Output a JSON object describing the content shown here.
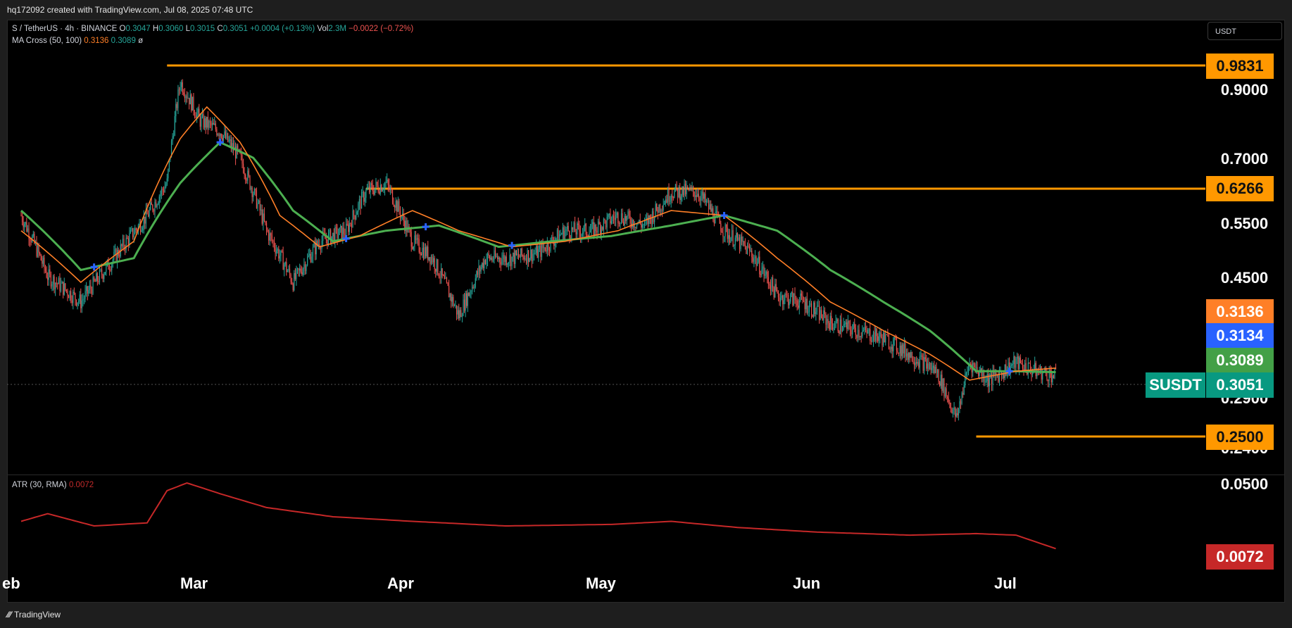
{
  "header": {
    "attribution": "hq172092 created with TradingView.com, Jul 08, 2025 07:48 UTC"
  },
  "legend": {
    "symbol": "S / TetherUS · 4h · BINANCE",
    "o_label": "O",
    "o": "0.3047",
    "h_label": "H",
    "h": "0.3060",
    "l_label": "L",
    "l": "0.3015",
    "c_label": "C",
    "c": "0.3051",
    "change": "+0.0004 (+0.13%)",
    "vol_label": "Vol",
    "vol": "2.3M",
    "vol_change": "−0.0022 (−0.72%)",
    "ma_name": "MA Cross (50, 100)",
    "ma_fast": "0.3136",
    "ma_slow": "0.3089",
    "ma_extra": "ø",
    "atr_name": "ATR (30, RMA)",
    "atr_value": "0.0072"
  },
  "currency_button": "USDT",
  "price_axis": [
    "0.9000",
    "0.7000",
    "0.5500",
    "0.4500",
    "0.2900",
    "0.2400",
    "0.0500"
  ],
  "price_tags": {
    "level_high": "0.9831",
    "level_mid": "0.6266",
    "ma_fast": "0.3136",
    "blue": "0.3134",
    "ma_slow": "0.3089",
    "last": "0.3051",
    "level_low": "0.2500",
    "atr": "0.0072"
  },
  "symbol_tag": "SUSDT",
  "months": [
    "eb",
    "Mar",
    "Apr",
    "May",
    "Jun",
    "Jul"
  ],
  "footer": {
    "brand": "TradingView"
  },
  "colors": {
    "up": "#26a69a",
    "down": "#ef5350",
    "ma_fast": "#ff7f27",
    "ma_slow": "#4caf50",
    "level": "#ff9800",
    "atr": "#c62828",
    "cross": "#2962ff"
  },
  "chart_data": {
    "type": "line",
    "title": "S / TetherUS · 4h · BINANCE",
    "x_ticks": [
      "eb",
      "Mar",
      "Apr",
      "May",
      "Jun",
      "Jul"
    ],
    "y_scale": "log",
    "ylim": [
      0.22,
      1.05
    ],
    "horizontal_levels": [
      0.9831,
      0.6266,
      0.25
    ],
    "series": [
      {
        "name": "S / TetherUS",
        "x": [
          "Feb 01",
          "Feb 05",
          "Feb 10",
          "Feb 15",
          "Feb 20",
          "Feb 23",
          "Feb 25",
          "Feb 28",
          "Mar 03",
          "Mar 06",
          "Mar 10",
          "Mar 14",
          "Mar 18",
          "Mar 22",
          "Mar 25",
          "Mar 28",
          "Apr 01",
          "Apr 04",
          "Apr 08",
          "Apr 12",
          "Apr 16",
          "Apr 20",
          "Apr 24",
          "Apr 28",
          "May 02",
          "May 06",
          "May 10",
          "May 14",
          "May 18",
          "May 22",
          "May 26",
          "May 30",
          "Jun 03",
          "Jun 07",
          "Jun 11",
          "Jun 15",
          "Jun 19",
          "Jun 22",
          "Jun 24",
          "Jun 27",
          "Jul 01",
          "Jul 04",
          "Jul 07"
        ],
        "values": [
          0.55,
          0.44,
          0.4,
          0.47,
          0.55,
          0.62,
          0.9,
          0.78,
          0.75,
          0.68,
          0.52,
          0.43,
          0.5,
          0.52,
          0.6,
          0.62,
          0.5,
          0.47,
          0.38,
          0.47,
          0.47,
          0.48,
          0.52,
          0.52,
          0.55,
          0.53,
          0.6,
          0.6,
          0.52,
          0.48,
          0.41,
          0.4,
          0.37,
          0.36,
          0.35,
          0.33,
          0.31,
          0.26,
          0.32,
          0.3,
          0.32,
          0.31,
          0.305
        ]
      },
      {
        "name": "MA 50",
        "x": [
          "Feb 01",
          "Feb 10",
          "Feb 18",
          "Feb 25",
          "Mar 01",
          "Mar 06",
          "Mar 12",
          "Mar 18",
          "Mar 24",
          "Apr 01",
          "Apr 08",
          "Apr 16",
          "Apr 24",
          "May 02",
          "May 10",
          "May 18",
          "May 26",
          "Jun 03",
          "Jun 11",
          "Jun 18",
          "Jun 24",
          "Jul 01",
          "Jul 07"
        ],
        "values": [
          0.52,
          0.43,
          0.5,
          0.73,
          0.82,
          0.72,
          0.55,
          0.49,
          0.51,
          0.56,
          0.52,
          0.49,
          0.5,
          0.52,
          0.56,
          0.55,
          0.47,
          0.4,
          0.36,
          0.33,
          0.3,
          0.31,
          0.3136
        ]
      },
      {
        "name": "MA 100",
        "x": [
          "Feb 01",
          "Feb 10",
          "Feb 18",
          "Feb 25",
          "Mar 03",
          "Mar 08",
          "Mar 14",
          "Mar 20",
          "Mar 28",
          "Apr 05",
          "Apr 14",
          "Apr 22",
          "May 01",
          "May 10",
          "May 18",
          "May 26",
          "Jun 03",
          "Jun 11",
          "Jun 18",
          "Jun 25",
          "Jul 01",
          "Jul 07"
        ],
        "values": [
          0.56,
          0.45,
          0.47,
          0.62,
          0.72,
          0.68,
          0.56,
          0.5,
          0.52,
          0.53,
          0.49,
          0.5,
          0.51,
          0.53,
          0.55,
          0.52,
          0.45,
          0.4,
          0.36,
          0.31,
          0.31,
          0.3089
        ]
      },
      {
        "name": "ATR",
        "x": [
          "Feb 01",
          "Feb 05",
          "Feb 12",
          "Feb 20",
          "Feb 23",
          "Feb 26",
          "Mar 03",
          "Mar 10",
          "Mar 20",
          "Apr 01",
          "Apr 15",
          "May 01",
          "May 10",
          "May 20",
          "Jun 01",
          "Jun 15",
          "Jun 25",
          "Jul 01",
          "Jul 07"
        ],
        "values": [
          0.025,
          0.03,
          0.022,
          0.024,
          0.045,
          0.05,
          0.043,
          0.034,
          0.028,
          0.025,
          0.022,
          0.023,
          0.025,
          0.021,
          0.018,
          0.016,
          0.017,
          0.016,
          0.0072
        ]
      }
    ]
  }
}
